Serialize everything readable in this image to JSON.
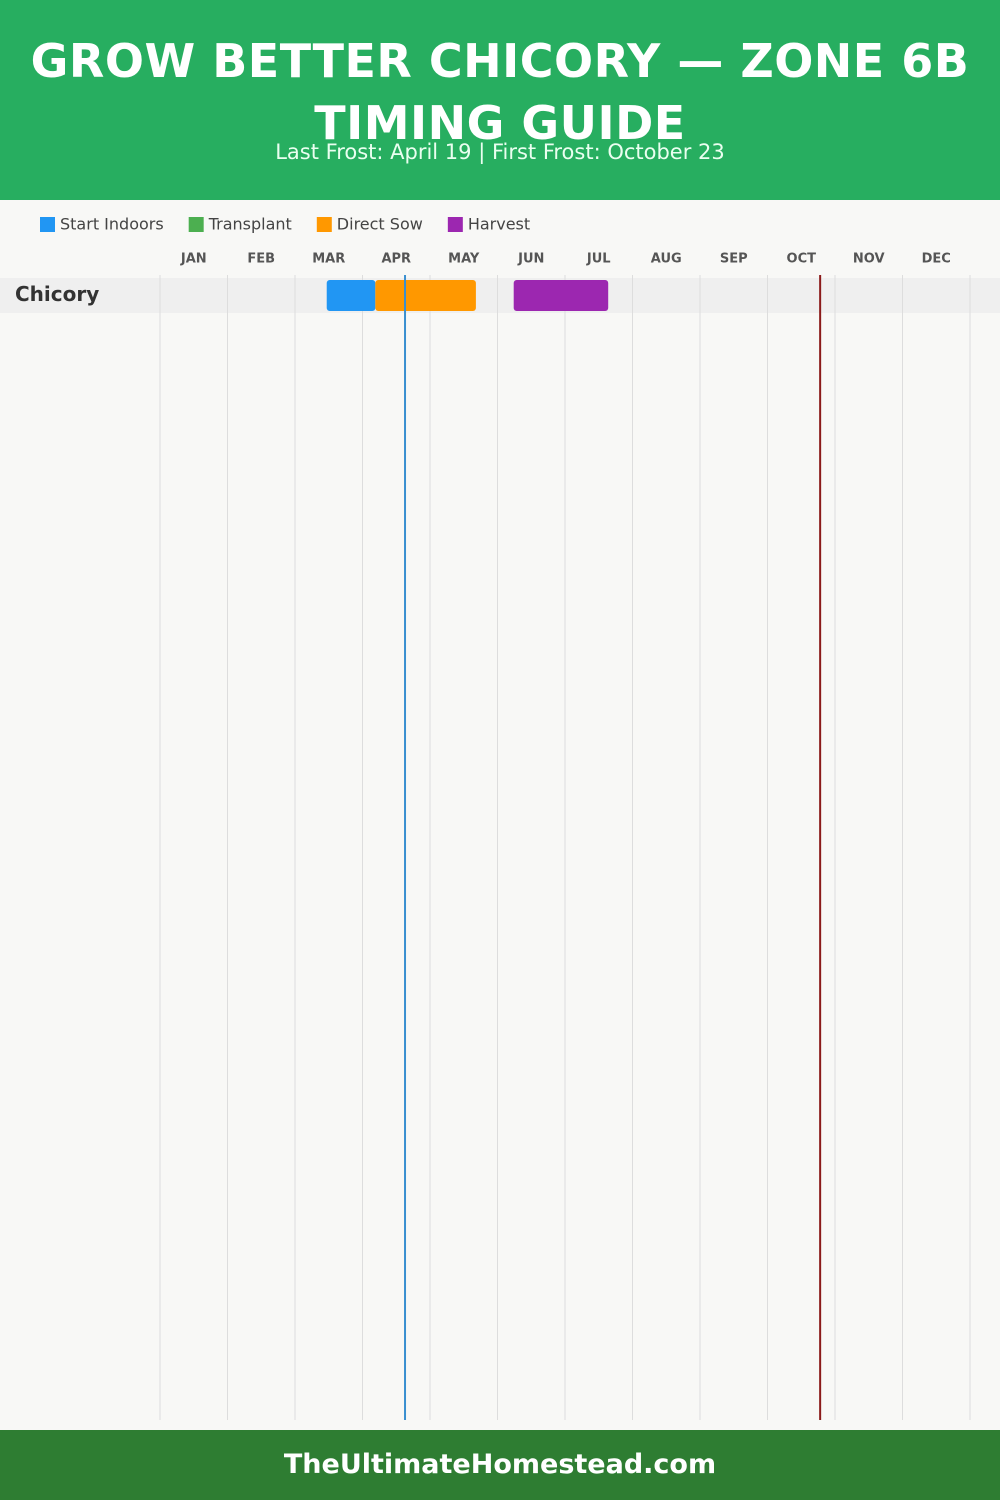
{
  "chart_data": {
    "type": "gantt",
    "title": "GROW BETTER CHICORY — ZONE 6B TIMING GUIDE",
    "subtitle": "Last Frost: April 19 | First Frost: October 23",
    "footer": "TheUltimateHomestead.com",
    "months": [
      "JAN",
      "FEB",
      "MAR",
      "APR",
      "MAY",
      "JUN",
      "JUL",
      "AUG",
      "SEP",
      "OCT",
      "NOV",
      "DEC"
    ],
    "xlim": [
      0,
      12
    ],
    "xticks": [
      0,
      1,
      2,
      3,
      4,
      5,
      6,
      7,
      8,
      9,
      10,
      11,
      12
    ],
    "grid": true,
    "categories": [
      "Chicory"
    ],
    "series": [
      {
        "name": "Start Indoors",
        "color": "#2196f3",
        "values": [
          [
            2.47,
            3.19
          ]
        ]
      },
      {
        "name": "Transplant",
        "color": "#4caf50",
        "values": [
          null
        ]
      },
      {
        "name": "Direct Sow",
        "color": "#ff9800",
        "values": [
          [
            3.19,
            4.68
          ]
        ]
      },
      {
        "name": "Harvest",
        "color": "#9c27b0",
        "values": [
          [
            5.24,
            6.64
          ]
        ]
      }
    ],
    "markers": [
      {
        "value": 3.63,
        "color": "#3a8fd0"
      },
      {
        "value": 9.78,
        "color": "#8b1a1a"
      }
    ]
  }
}
